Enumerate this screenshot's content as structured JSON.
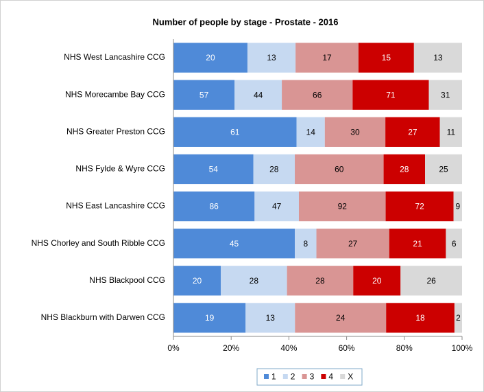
{
  "chart_data": {
    "type": "stacked_percent_bar",
    "orientation": "horizontal",
    "title": "Number of people by stage - Prostate - 2016",
    "categories": [
      "NHS West Lancashire CCG",
      "NHS Morecambe Bay CCG",
      "NHS Greater Preston CCG",
      "NHS Fylde & Wyre CCG",
      "NHS East Lancashire CCG",
      "NHS Chorley and South Ribble CCG",
      "NHS Blackpool CCG",
      "NHS Blackburn with Darwen CCG"
    ],
    "series": [
      {
        "name": "1",
        "color": "#4f8ad8",
        "values": [
          20,
          57,
          61,
          54,
          86,
          45,
          20,
          19
        ]
      },
      {
        "name": "2",
        "color": "#c6d9f1",
        "values": [
          13,
          44,
          14,
          28,
          47,
          8,
          28,
          13
        ]
      },
      {
        "name": "3",
        "color": "#d99594",
        "values": [
          17,
          66,
          30,
          60,
          92,
          27,
          28,
          24
        ]
      },
      {
        "name": "4",
        "color": "#cc0000",
        "values": [
          15,
          71,
          27,
          28,
          72,
          21,
          20,
          18
        ]
      },
      {
        "name": "X",
        "color": "#d9d9d9",
        "values": [
          13,
          31,
          11,
          25,
          9,
          6,
          26,
          2
        ]
      }
    ],
    "xlim": [
      0,
      100
    ],
    "xticks": [
      {
        "value": 0,
        "label": "0%"
      },
      {
        "value": 20,
        "label": "20%"
      },
      {
        "value": 40,
        "label": "40%"
      },
      {
        "value": 60,
        "label": "60%"
      },
      {
        "value": 80,
        "label": "80%"
      },
      {
        "value": 100,
        "label": "100%"
      }
    ],
    "legend": "bottom"
  }
}
